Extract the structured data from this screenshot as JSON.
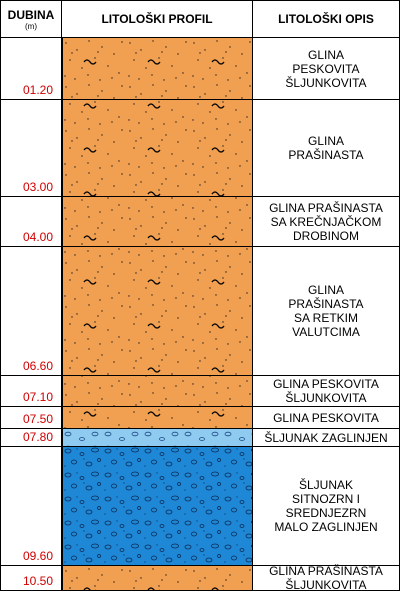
{
  "header": {
    "depth": "DUBINA",
    "unit": "(m)",
    "profile": "LITOLOŠKI PROFIL",
    "description": "LITOLOŠKI OPIS"
  },
  "layers": [
    {
      "depth": "01.20",
      "description": "GLINA\nPESKOVITA\nŠLJUNKOVITA"
    },
    {
      "depth": "03.00",
      "description": "GLINA\nPRAŠINASTA"
    },
    {
      "depth": "04.00",
      "description": "GLINA PRAŠINASTA\nSA KREČNJAČKOM\nDROBINOM"
    },
    {
      "depth": "06.60",
      "description": "GLINA\nPRAŠINASTA\nSA RETKIM\nVALUTCIMA"
    },
    {
      "depth": "07.10",
      "description": "GLINA PESKOVITA\nŠLJUNKOVITA"
    },
    {
      "depth": "07.50",
      "description": "GLINA PESKOVITA"
    },
    {
      "depth": "07.80",
      "description": "ŠLJUNAK ZAGLINJEN"
    },
    {
      "depth": "09.60",
      "description": "ŠLJUNAK\nSITNOZRN I\nSREDNJEZRN\nMALO ZAGLINJEN"
    },
    {
      "depth": "10.50",
      "description": "GLINA PRAŠINASTA\nŠLJUNKOVITA"
    }
  ]
}
